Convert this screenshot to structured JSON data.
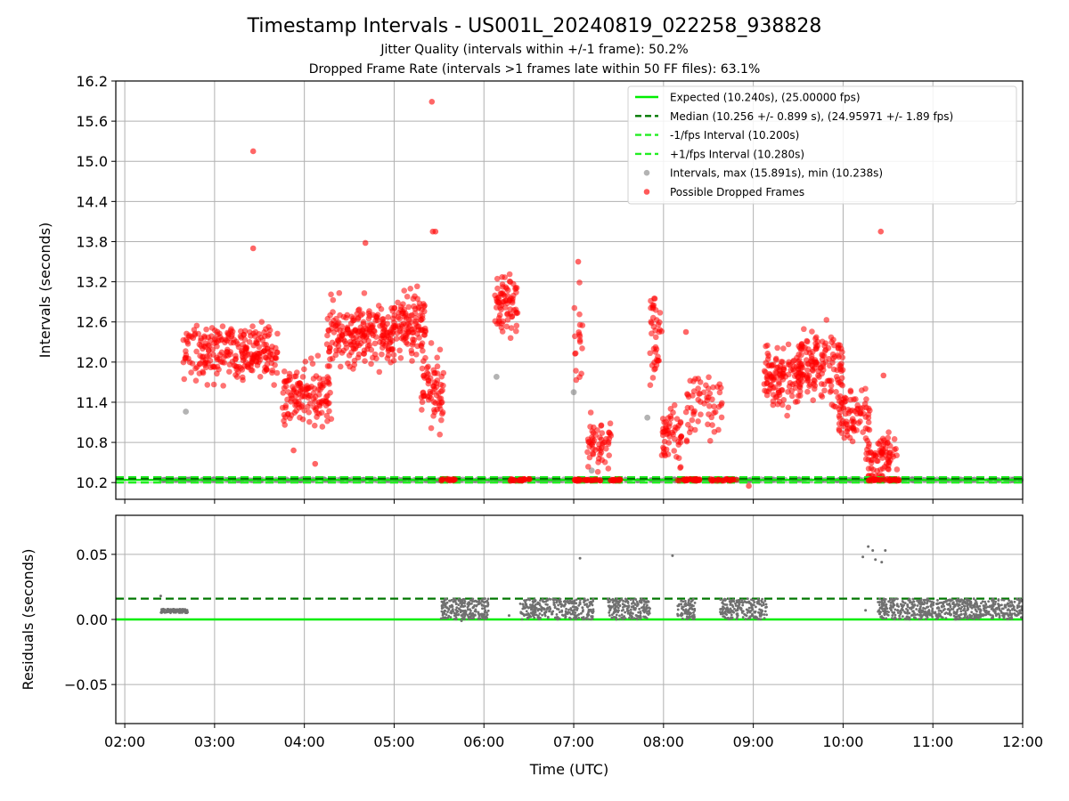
{
  "title": "Timestamp Intervals - US001L_20240819_022258_938828",
  "subtitle_1": "Jitter Quality (intervals within +/-1 frame): 50.2%",
  "subtitle_2": "Dropped Frame Rate (intervals >1 frames late within 50 FF files): 63.1%",
  "colors": {
    "expected": "#00ee00",
    "median": "#007700",
    "interval_band": "#22ee22",
    "intervals": "#808080",
    "dropped": "#ff0000",
    "residual": "#707070",
    "grid": "#b0b0b0"
  },
  "chart_data": [
    {
      "type": "scatter",
      "panel": "top",
      "xlabel": "",
      "ylabel": "Intervals (seconds)",
      "xlim": [
        1.9,
        12.0
      ],
      "ylim": [
        9.95,
        16.2
      ],
      "yticks": [
        10.2,
        10.8,
        11.4,
        12.0,
        12.6,
        13.2,
        13.8,
        14.4,
        15.0,
        15.6,
        16.2
      ],
      "yticklabels": [
        "10.2",
        "10.8",
        "11.4",
        "12.0",
        "12.6",
        "13.2",
        "13.8",
        "14.4",
        "15.0",
        "15.6",
        "16.2"
      ],
      "grid": true,
      "legend_position": "top-right",
      "legend": [
        {
          "label": "Expected (10.240s), (25.00000 fps)",
          "style": "solid-line",
          "color": "#00ee00"
        },
        {
          "label": "Median (10.256 +/- 0.899 s), (24.95971 +/- 1.89 fps)",
          "style": "dashed-line",
          "color": "#007700"
        },
        {
          "label": "-1/fps Interval (10.200s)",
          "style": "dashed-line",
          "color": "#22ee22"
        },
        {
          "label": "+1/fps Interval (10.280s)",
          "style": "dashed-line",
          "color": "#22ee22"
        },
        {
          "label": "Intervals, max (15.891s), min (10.238s)",
          "style": "marker",
          "color": "#a0a0a0"
        },
        {
          "label": "Possible Dropped Frames",
          "style": "marker",
          "color": "#ff3030"
        }
      ],
      "reference_lines": {
        "expected": 10.24,
        "median": 10.256,
        "minus_1fps": 10.2,
        "plus_1fps": 10.28
      },
      "gray_interval_points": [
        [
          2.68,
          11.26
        ],
        [
          6.14,
          11.78
        ],
        [
          7.0,
          11.55
        ],
        [
          7.2,
          10.38
        ],
        [
          7.82,
          11.17
        ]
      ],
      "dropped_frame_outliers": [
        [
          3.43,
          15.15
        ],
        [
          5.42,
          15.89
        ],
        [
          5.43,
          13.95
        ],
        [
          5.46,
          13.95
        ],
        [
          4.68,
          13.78
        ],
        [
          3.43,
          13.7
        ],
        [
          10.42,
          13.95
        ],
        [
          8.95,
          10.15
        ],
        [
          4.12,
          10.48
        ],
        [
          3.88,
          10.68
        ],
        [
          10.45,
          11.8
        ],
        [
          7.05,
          13.5
        ],
        [
          8.25,
          12.45
        ]
      ],
      "dropped_frame_clusters": [
        {
          "x": [
            2.65,
            3.7
          ],
          "center": 12.15,
          "spread": 0.36,
          "count": 260
        },
        {
          "x": [
            3.75,
            4.3
          ],
          "center": 11.5,
          "spread": 0.4,
          "count": 140
        },
        {
          "x": [
            4.25,
            5.0
          ],
          "center": 12.4,
          "spread": 0.42,
          "count": 220
        },
        {
          "x": [
            5.0,
            5.35
          ],
          "center": 12.55,
          "spread": 0.4,
          "count": 110
        },
        {
          "x": [
            5.3,
            5.55
          ],
          "center": 11.6,
          "spread": 0.45,
          "count": 70
        },
        {
          "x": [
            6.12,
            6.38
          ],
          "center": 12.9,
          "spread": 0.35,
          "count": 75
        },
        {
          "x": [
            7.0,
            7.1
          ],
          "center": 12.3,
          "spread": 0.55,
          "count": 18
        },
        {
          "x": [
            7.15,
            7.42
          ],
          "center": 10.75,
          "spread": 0.35,
          "count": 55
        },
        {
          "x": [
            7.85,
            7.98
          ],
          "center": 12.4,
          "spread": 0.6,
          "count": 40
        },
        {
          "x": [
            7.98,
            8.2
          ],
          "center": 10.9,
          "spread": 0.35,
          "count": 55
        },
        {
          "x": [
            8.25,
            8.65
          ],
          "center": 11.4,
          "spread": 0.5,
          "count": 60
        },
        {
          "x": [
            9.12,
            9.55
          ],
          "center": 11.8,
          "spread": 0.42,
          "count": 130
        },
        {
          "x": [
            9.5,
            10.0
          ],
          "center": 11.95,
          "spread": 0.45,
          "count": 140
        },
        {
          "x": [
            9.95,
            10.3
          ],
          "center": 11.2,
          "spread": 0.35,
          "count": 80
        },
        {
          "x": [
            10.25,
            10.6
          ],
          "center": 10.55,
          "spread": 0.28,
          "count": 80
        }
      ],
      "baseline_intervals": {
        "x": [
          2.38,
          12.0
        ],
        "y": 10.24,
        "count": 700
      },
      "baseline_dropped_runs": [
        [
          5.52,
          5.68
        ],
        [
          6.28,
          6.52
        ],
        [
          7.0,
          7.32
        ],
        [
          7.4,
          7.55
        ],
        [
          8.15,
          8.45
        ],
        [
          8.52,
          8.62
        ],
        [
          8.65,
          8.82
        ],
        [
          10.28,
          10.62
        ]
      ]
    },
    {
      "type": "scatter",
      "panel": "bottom",
      "xlabel": "Time (UTC)",
      "ylabel": "Residuals (seconds)",
      "xlim": [
        1.9,
        12.0
      ],
      "ylim": [
        -0.08,
        0.08
      ],
      "yticks": [
        -0.05,
        0.0,
        0.05
      ],
      "yticklabels": [
        "−0.05",
        "0.00",
        "0.05"
      ],
      "xticks": [
        2,
        3,
        4,
        5,
        6,
        7,
        8,
        9,
        10,
        11,
        12
      ],
      "xticklabels": [
        "02:00",
        "03:00",
        "04:00",
        "05:00",
        "06:00",
        "07:00",
        "08:00",
        "09:00",
        "10:00",
        "11:00",
        "12:00"
      ],
      "grid": true,
      "reference_lines": {
        "expected": 0.0,
        "median": 0.016
      },
      "residual_segments": [
        {
          "x": [
            2.4,
            2.7
          ],
          "low": 0.005,
          "high": 0.008,
          "count": 120
        },
        {
          "x": [
            5.52,
            6.05
          ],
          "low": 0.0,
          "high": 0.016,
          "count": 230
        },
        {
          "x": [
            6.4,
            7.22
          ],
          "low": 0.0,
          "high": 0.016,
          "count": 300
        },
        {
          "x": [
            7.38,
            7.85
          ],
          "low": 0.0,
          "high": 0.016,
          "count": 190
        },
        {
          "x": [
            8.15,
            8.35
          ],
          "low": 0.0,
          "high": 0.016,
          "count": 80
        },
        {
          "x": [
            8.63,
            9.15
          ],
          "low": 0.0,
          "high": 0.016,
          "count": 200
        },
        {
          "x": [
            10.38,
            12.0
          ],
          "low": 0.0,
          "high": 0.016,
          "count": 640
        }
      ],
      "residual_outliers": [
        [
          7.07,
          0.047
        ],
        [
          8.1,
          0.049
        ],
        [
          10.22,
          0.048
        ],
        [
          10.28,
          0.056
        ],
        [
          10.33,
          0.053
        ],
        [
          10.36,
          0.046
        ],
        [
          10.43,
          0.044
        ],
        [
          10.47,
          0.053
        ],
        [
          2.4,
          0.018
        ],
        [
          10.25,
          0.007
        ],
        [
          6.28,
          0.003
        ],
        [
          5.75,
          -0.001
        ]
      ]
    }
  ]
}
